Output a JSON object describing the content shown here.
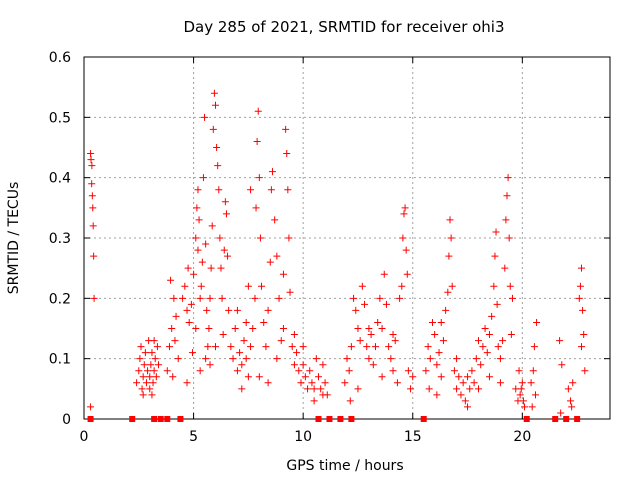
{
  "chart_data": {
    "type": "scatter",
    "title": "Day 285 of 2021, SRMTID for receiver ohi3",
    "xlabel": "GPS time / hours",
    "ylabel": "SRMTID / TECUs",
    "xlim": [
      0,
      24
    ],
    "ylim": [
      0,
      0.6
    ],
    "xticks": [
      0,
      5,
      10,
      15,
      20
    ],
    "xtick_labels": [
      "0",
      "5",
      "10",
      "15",
      "20"
    ],
    "yticks": [
      0,
      0.1,
      0.2,
      0.3,
      0.4,
      0.5,
      0.6
    ],
    "ytick_labels": [
      "0",
      "0.1",
      "0.2",
      "0.3",
      "0.4",
      "0.5",
      "0.6"
    ],
    "grid": true,
    "marker_color": "#ff0000",
    "series": [
      {
        "name": "SRMTID",
        "marker": "plus",
        "points": [
          [
            0.3,
            0.44
          ],
          [
            0.32,
            0.43
          ],
          [
            0.35,
            0.39
          ],
          [
            0.36,
            0.42
          ],
          [
            0.38,
            0.37
          ],
          [
            0.4,
            0.35
          ],
          [
            0.42,
            0.32
          ],
          [
            0.44,
            0.27
          ],
          [
            0.46,
            0.2
          ],
          [
            0.3,
            0.02
          ],
          [
            2.4,
            0.06
          ],
          [
            2.5,
            0.08
          ],
          [
            2.55,
            0.1
          ],
          [
            2.6,
            0.12
          ],
          [
            2.7,
            0.07
          ],
          [
            2.75,
            0.09
          ],
          [
            2.8,
            0.11
          ],
          [
            2.85,
            0.06
          ],
          [
            2.9,
            0.08
          ],
          [
            2.95,
            0.13
          ],
          [
            3.0,
            0.07
          ],
          [
            3.05,
            0.09
          ],
          [
            3.1,
            0.11
          ],
          [
            3.15,
            0.06
          ],
          [
            3.2,
            0.08
          ],
          [
            3.25,
            0.1
          ],
          [
            3.3,
            0.07
          ],
          [
            3.35,
            0.12
          ],
          [
            3.4,
            0.09
          ],
          [
            2.65,
            0.05
          ],
          [
            3.0,
            0.05
          ],
          [
            3.2,
            0.13
          ],
          [
            2.7,
            0.04
          ],
          [
            3.1,
            0.04
          ],
          [
            3.8,
            0.08
          ],
          [
            3.9,
            0.12
          ],
          [
            4.0,
            0.15
          ],
          [
            4.1,
            0.2
          ],
          [
            4.2,
            0.17
          ],
          [
            4.3,
            0.1
          ],
          [
            3.95,
            0.23
          ],
          [
            4.05,
            0.07
          ],
          [
            4.15,
            0.13
          ],
          [
            4.5,
            0.2
          ],
          [
            4.6,
            0.22
          ],
          [
            4.7,
            0.18
          ],
          [
            4.75,
            0.25
          ],
          [
            4.8,
            0.16
          ],
          [
            4.9,
            0.19
          ],
          [
            5.0,
            0.24
          ],
          [
            5.1,
            0.3
          ],
          [
            5.15,
            0.35
          ],
          [
            5.2,
            0.28
          ],
          [
            5.25,
            0.33
          ],
          [
            5.3,
            0.2
          ],
          [
            5.35,
            0.22
          ],
          [
            5.4,
            0.26
          ],
          [
            5.45,
            0.4
          ],
          [
            5.5,
            0.5
          ],
          [
            5.55,
            0.29
          ],
          [
            5.6,
            0.18
          ],
          [
            5.65,
            0.12
          ],
          [
            5.7,
            0.15
          ],
          [
            5.75,
            0.2
          ],
          [
            5.8,
            0.25
          ],
          [
            5.85,
            0.32
          ],
          [
            5.9,
            0.48
          ],
          [
            5.95,
            0.54
          ],
          [
            6.0,
            0.52
          ],
          [
            6.05,
            0.45
          ],
          [
            6.1,
            0.42
          ],
          [
            6.15,
            0.38
          ],
          [
            6.2,
            0.3
          ],
          [
            6.25,
            0.25
          ],
          [
            6.3,
            0.2
          ],
          [
            6.35,
            0.14
          ],
          [
            6.4,
            0.28
          ],
          [
            6.45,
            0.36
          ],
          [
            6.5,
            0.34
          ],
          [
            6.55,
            0.27
          ],
          [
            6.6,
            0.18
          ],
          [
            5.55,
            0.1
          ],
          [
            5.75,
            0.09
          ],
          [
            5.1,
            0.15
          ],
          [
            4.95,
            0.11
          ],
          [
            6.0,
            0.12
          ],
          [
            5.2,
            0.38
          ],
          [
            4.7,
            0.06
          ],
          [
            5.3,
            0.08
          ],
          [
            6.7,
            0.12
          ],
          [
            6.8,
            0.1
          ],
          [
            6.9,
            0.15
          ],
          [
            7.0,
            0.08
          ],
          [
            7.1,
            0.11
          ],
          [
            7.2,
            0.09
          ],
          [
            7.3,
            0.13
          ],
          [
            7.4,
            0.1
          ],
          [
            7.5,
            0.07
          ],
          [
            7.6,
            0.12
          ],
          [
            7.7,
            0.15
          ],
          [
            7.8,
            0.2
          ],
          [
            7.85,
            0.35
          ],
          [
            7.9,
            0.46
          ],
          [
            7.95,
            0.51
          ],
          [
            8.0,
            0.4
          ],
          [
            8.05,
            0.3
          ],
          [
            8.1,
            0.22
          ],
          [
            8.2,
            0.16
          ],
          [
            8.3,
            0.12
          ],
          [
            8.4,
            0.18
          ],
          [
            8.5,
            0.26
          ],
          [
            8.55,
            0.38
          ],
          [
            8.6,
            0.41
          ],
          [
            8.7,
            0.33
          ],
          [
            8.8,
            0.27
          ],
          [
            8.9,
            0.2
          ],
          [
            9.0,
            0.13
          ],
          [
            9.1,
            0.24
          ],
          [
            9.2,
            0.48
          ],
          [
            9.25,
            0.44
          ],
          [
            9.3,
            0.38
          ],
          [
            9.35,
            0.3
          ],
          [
            9.4,
            0.21
          ],
          [
            7.0,
            0.18
          ],
          [
            7.2,
            0.05
          ],
          [
            7.6,
            0.38
          ],
          [
            7.4,
            0.16
          ],
          [
            8.0,
            0.07
          ],
          [
            8.4,
            0.06
          ],
          [
            8.8,
            0.1
          ],
          [
            9.1,
            0.15
          ],
          [
            7.5,
            0.22
          ],
          [
            9.5,
            0.12
          ],
          [
            9.6,
            0.09
          ],
          [
            9.7,
            0.11
          ],
          [
            9.8,
            0.08
          ],
          [
            9.9,
            0.06
          ],
          [
            10.0,
            0.09
          ],
          [
            10.1,
            0.07
          ],
          [
            10.2,
            0.05
          ],
          [
            10.3,
            0.08
          ],
          [
            10.4,
            0.06
          ],
          [
            10.5,
            0.05
          ],
          [
            10.6,
            0.1
          ],
          [
            10.7,
            0.07
          ],
          [
            10.8,
            0.05
          ],
          [
            10.9,
            0.09
          ],
          [
            11.0,
            0.06
          ],
          [
            11.1,
            0.04
          ],
          [
            9.6,
            0.14
          ],
          [
            10.0,
            0.12
          ],
          [
            10.5,
            0.03
          ],
          [
            10.9,
            0.04
          ],
          [
            11.9,
            0.06
          ],
          [
            12.0,
            0.1
          ],
          [
            12.1,
            0.08
          ],
          [
            12.2,
            0.12
          ],
          [
            12.3,
            0.2
          ],
          [
            12.4,
            0.18
          ],
          [
            12.5,
            0.15
          ],
          [
            12.6,
            0.13
          ],
          [
            12.7,
            0.22
          ],
          [
            12.8,
            0.19
          ],
          [
            12.9,
            0.12
          ],
          [
            13.0,
            0.1
          ],
          [
            13.1,
            0.14
          ],
          [
            13.2,
            0.09
          ],
          [
            13.3,
            0.12
          ],
          [
            13.4,
            0.16
          ],
          [
            13.5,
            0.2
          ],
          [
            13.6,
            0.15
          ],
          [
            13.7,
            0.24
          ],
          [
            13.8,
            0.19
          ],
          [
            13.9,
            0.12
          ],
          [
            14.0,
            0.1
          ],
          [
            14.1,
            0.08
          ],
          [
            14.2,
            0.13
          ],
          [
            14.3,
            0.06
          ],
          [
            14.4,
            0.2
          ],
          [
            14.5,
            0.22
          ],
          [
            14.55,
            0.3
          ],
          [
            14.6,
            0.34
          ],
          [
            14.65,
            0.35
          ],
          [
            14.7,
            0.28
          ],
          [
            14.75,
            0.24
          ],
          [
            14.8,
            0.08
          ],
          [
            14.9,
            0.05
          ],
          [
            15.0,
            0.07
          ],
          [
            12.5,
            0.05
          ],
          [
            13.0,
            0.15
          ],
          [
            13.6,
            0.07
          ],
          [
            14.1,
            0.14
          ],
          [
            12.15,
            0.03
          ],
          [
            15.6,
            0.08
          ],
          [
            15.7,
            0.12
          ],
          [
            15.8,
            0.1
          ],
          [
            15.9,
            0.16
          ],
          [
            16.0,
            0.14
          ],
          [
            16.1,
            0.09
          ],
          [
            16.2,
            0.11
          ],
          [
            16.3,
            0.07
          ],
          [
            16.4,
            0.13
          ],
          [
            16.5,
            0.18
          ],
          [
            16.6,
            0.21
          ],
          [
            16.65,
            0.27
          ],
          [
            16.7,
            0.33
          ],
          [
            16.75,
            0.3
          ],
          [
            16.8,
            0.22
          ],
          [
            16.9,
            0.08
          ],
          [
            17.0,
            0.05
          ],
          [
            17.1,
            0.07
          ],
          [
            17.2,
            0.04
          ],
          [
            17.3,
            0.06
          ],
          [
            17.4,
            0.03
          ],
          [
            17.5,
            0.07
          ],
          [
            17.6,
            0.05
          ],
          [
            17.7,
            0.08
          ],
          [
            17.8,
            0.06
          ],
          [
            17.9,
            0.1
          ],
          [
            18.0,
            0.13
          ],
          [
            18.1,
            0.09
          ],
          [
            18.2,
            0.12
          ],
          [
            18.3,
            0.15
          ],
          [
            18.4,
            0.11
          ],
          [
            18.5,
            0.14
          ],
          [
            18.6,
            0.17
          ],
          [
            18.7,
            0.22
          ],
          [
            18.75,
            0.27
          ],
          [
            18.8,
            0.31
          ],
          [
            18.85,
            0.19
          ],
          [
            18.9,
            0.12
          ],
          [
            19.0,
            0.1
          ],
          [
            19.1,
            0.13
          ],
          [
            19.2,
            0.25
          ],
          [
            19.25,
            0.33
          ],
          [
            19.3,
            0.37
          ],
          [
            19.35,
            0.4
          ],
          [
            19.4,
            0.3
          ],
          [
            19.45,
            0.22
          ],
          [
            19.5,
            0.14
          ],
          [
            19.55,
            0.2
          ],
          [
            16.1,
            0.04
          ],
          [
            17.0,
            0.1
          ],
          [
            18.0,
            0.05
          ],
          [
            18.5,
            0.07
          ],
          [
            19.0,
            0.06
          ],
          [
            15.75,
            0.05
          ],
          [
            16.3,
            0.16
          ],
          [
            17.5,
            0.02
          ],
          [
            19.7,
            0.05
          ],
          [
            19.8,
            0.03
          ],
          [
            19.9,
            0.04
          ],
          [
            20.0,
            0.06
          ],
          [
            20.1,
            0.02
          ],
          [
            19.85,
            0.08
          ],
          [
            19.95,
            0.05
          ],
          [
            20.05,
            0.03
          ],
          [
            20.4,
            0.06
          ],
          [
            20.5,
            0.08
          ],
          [
            20.6,
            0.04
          ],
          [
            20.55,
            0.12
          ],
          [
            20.65,
            0.16
          ],
          [
            20.45,
            0.02
          ],
          [
            21.7,
            0.13
          ],
          [
            21.8,
            0.09
          ],
          [
            21.75,
            0.01
          ],
          [
            22.1,
            0.05
          ],
          [
            22.2,
            0.03
          ],
          [
            22.3,
            0.06
          ],
          [
            22.25,
            0.02
          ],
          [
            22.6,
            0.2
          ],
          [
            22.7,
            0.25
          ],
          [
            22.75,
            0.18
          ],
          [
            22.8,
            0.14
          ],
          [
            22.85,
            0.08
          ],
          [
            22.65,
            0.22
          ],
          [
            22.7,
            0.12
          ]
        ]
      },
      {
        "name": "zero-level markers",
        "marker": "square",
        "x": [
          0.3,
          2.2,
          3.2,
          3.5,
          3.8,
          4.4,
          10.7,
          11.2,
          11.7,
          12.2,
          15.5,
          20.2,
          21.5,
          22.0,
          22.5
        ]
      }
    ]
  }
}
